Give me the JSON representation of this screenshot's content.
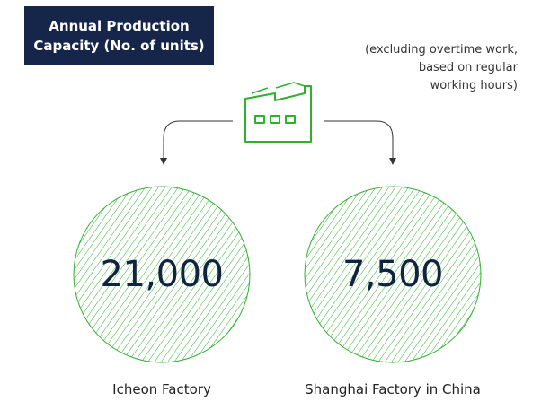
{
  "title": {
    "line1": "Annual Production",
    "line2": "Capacity (No. of units)"
  },
  "note": {
    "line1": "(excluding overtime work,",
    "line2": "based on regular",
    "line3": "working hours)"
  },
  "icon": "factory-icon",
  "colors": {
    "badge_bg": "#15264a",
    "accent_green": "#2fb02f",
    "value_text": "#10233f"
  },
  "factories": [
    {
      "name": "Icheon Factory",
      "capacity": "21,000"
    },
    {
      "name": "Shanghai Factory in China",
      "capacity": "7,500"
    }
  ]
}
